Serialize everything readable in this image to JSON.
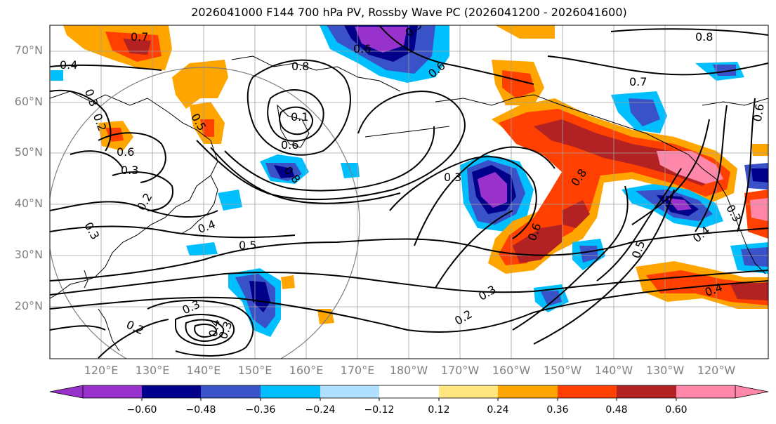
{
  "title": "2026041000 F144 700 hPa PV, Rossby Wave PC (2026041200 - 2026041600)",
  "lat_labels": [
    "70°N",
    "60°N",
    "50°N",
    "40°N",
    "30°N",
    "20°N"
  ],
  "lon_labels": [
    "120°E",
    "130°E",
    "140°E",
    "150°E",
    "160°E",
    "170°E",
    "180°W",
    "170°W",
    "160°W",
    "150°W",
    "140°W",
    "130°W",
    "120°W"
  ],
  "colorbar": {
    "ticks": [
      "−0.60",
      "−0.48",
      "−0.36",
      "−0.24",
      "−0.12",
      "0.12",
      "0.24",
      "0.36",
      "0.48",
      "0.60"
    ],
    "colors": [
      "#9932CC",
      "#00008B",
      "#3A52C8",
      "#00BFFF",
      "#B0E0FF",
      "#FFFFFF",
      "#FFE680",
      "#FFA500",
      "#FF4000",
      "#B22222",
      "#FF88AA"
    ]
  },
  "contour_labels": [
    "0.7",
    "0.4",
    "0.3",
    "0.2",
    "0.6",
    "0.3",
    "0.2",
    "0.3",
    "0.5",
    "0.4",
    "0.5",
    "0.8",
    "0.6",
    "0.1",
    "0.6",
    "0.8",
    "0.5",
    "0.6",
    "0.3",
    "0.3",
    "0.2",
    "0.3",
    "0.2",
    "0.4",
    "0.3",
    "0.6",
    "0.8",
    "0.8",
    "0.7",
    "0.5",
    "0.4",
    "0.4",
    "0.6",
    "0.3"
  ]
}
